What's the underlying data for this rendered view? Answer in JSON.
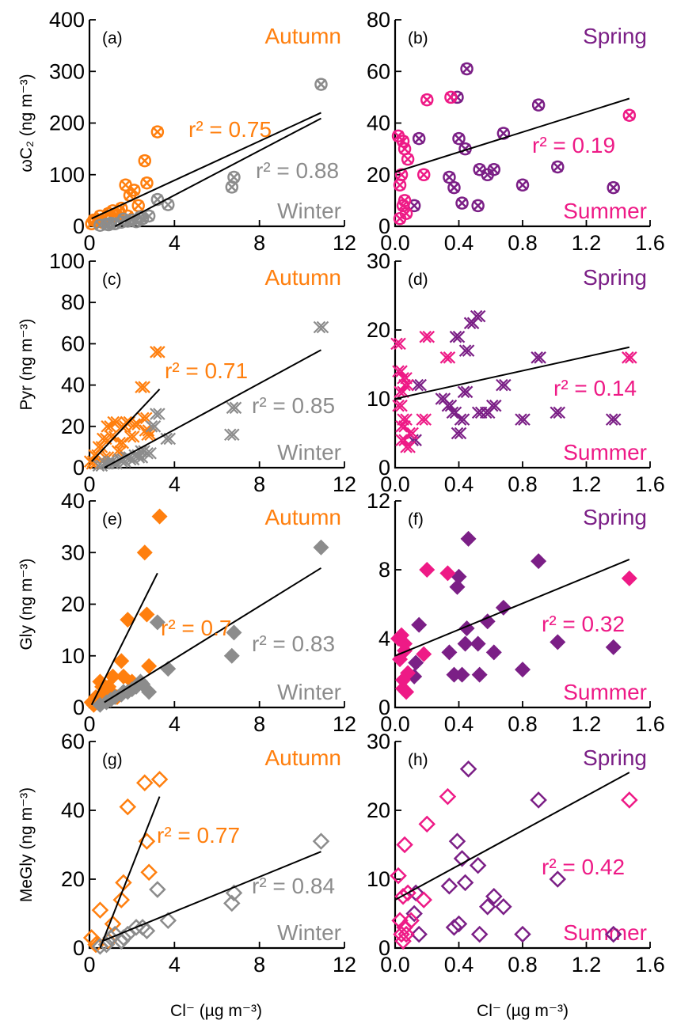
{
  "colors": {
    "autumn": "#FF7F0E",
    "winter": "#8C8C8C",
    "spring": "#7B1F86",
    "summer": "#EE1A86",
    "fit": "#000000"
  },
  "xlabel": "Cl⁻ (µg m⁻³)",
  "chart_data": [
    {
      "panel": "(a)",
      "type": "scatter",
      "marker": "circle-x",
      "ylabel": "ωC₂ (ng m⁻³)",
      "xlim": [
        0,
        12
      ],
      "ylim": [
        0,
        400
      ],
      "xticks": [
        0,
        4,
        8,
        12
      ],
      "yticks": [
        0,
        100,
        200,
        300,
        400
      ],
      "labels": {
        "top": "Autumn",
        "bottom": "Winter"
      },
      "series": [
        {
          "name": "Autumn",
          "color": "autumn",
          "r2": "r² = 0.75",
          "x": [
            0.1,
            0.3,
            0.5,
            0.7,
            0.9,
            1.1,
            1.3,
            1.5,
            1.7,
            1.9,
            2.1,
            2.3,
            2.6,
            2.7,
            3.2,
            1.8,
            0.2,
            0.6,
            1.0,
            1.4
          ],
          "y": [
            5,
            10,
            20,
            15,
            25,
            30,
            20,
            35,
            80,
            60,
            70,
            40,
            127,
            84,
            183,
            20,
            12,
            8,
            18,
            28
          ],
          "fit": [
            [
              0.1,
              15
            ],
            [
              10.9,
              220
            ]
          ]
        },
        {
          "name": "Winter",
          "color": "winter",
          "r2": "r² = 0.88",
          "x": [
            0.5,
            0.8,
            1.0,
            1.2,
            1.5,
            1.8,
            2.0,
            2.2,
            2.5,
            2.8,
            3.2,
            3.7,
            6.7,
            6.8,
            10.9,
            1.6,
            2.4,
            0.9
          ],
          "y": [
            2,
            4,
            6,
            5,
            8,
            10,
            12,
            9,
            15,
            20,
            52,
            42,
            76,
            95,
            275,
            14,
            18,
            3
          ],
          "fit": [
            [
              1.2,
              0
            ],
            [
              10.9,
              209
            ]
          ]
        }
      ]
    },
    {
      "panel": "(b)",
      "type": "scatter",
      "marker": "circle-x",
      "xlim": [
        0,
        1.6
      ],
      "ylim": [
        0,
        80
      ],
      "xticks": [
        0,
        0.4,
        0.8,
        1.2,
        1.6
      ],
      "yticks": [
        0,
        20,
        40,
        60,
        80
      ],
      "labels": {
        "top": "Spring",
        "bottom": "Summer"
      },
      "series": [
        {
          "name": "Spring",
          "color": "spring",
          "x": [
            0.12,
            0.15,
            0.34,
            0.37,
            0.39,
            0.42,
            0.44,
            0.45,
            0.52,
            0.53,
            0.58,
            0.62,
            0.68,
            0.8,
            0.9,
            1.02,
            1.37,
            0.4
          ],
          "y": [
            8,
            34,
            19,
            15,
            50,
            9,
            30,
            61,
            8,
            22,
            20,
            22,
            36,
            16,
            47,
            23,
            15,
            34
          ],
          "fit": [
            [
              0,
              21
            ],
            [
              1.47,
              49.5
            ]
          ]
        },
        {
          "name": "Summer",
          "color": "summer",
          "r2": "r² = 0.19",
          "x": [
            0.02,
            0.03,
            0.05,
            0.06,
            0.07,
            0.08,
            0.04,
            0.18,
            0.2,
            0.35,
            1.47,
            0.05,
            0.06,
            0.03
          ],
          "y": [
            35,
            16,
            33,
            30,
            5,
            26,
            20,
            20,
            49,
            50,
            43,
            8,
            10,
            3
          ],
          "fit": null
        }
      ]
    },
    {
      "panel": "(c)",
      "type": "scatter",
      "marker": "double-x",
      "ylabel": "Pyr (ng m⁻³)",
      "xlim": [
        0,
        12
      ],
      "ylim": [
        0,
        100
      ],
      "xticks": [
        0,
        4,
        8,
        12
      ],
      "yticks": [
        0,
        20,
        40,
        60,
        80,
        100
      ],
      "labels": {
        "top": "Autumn",
        "bottom": "Winter"
      },
      "series": [
        {
          "name": "Autumn",
          "color": "autumn",
          "r2": "r² = 0.71",
          "x": [
            0.1,
            0.3,
            0.5,
            0.7,
            0.9,
            1.1,
            1.2,
            1.4,
            1.6,
            1.8,
            2.0,
            2.2,
            2.5,
            2.6,
            2.7,
            3.2,
            0.2,
            0.8,
            1.5,
            2.8
          ],
          "y": [
            3,
            6,
            10,
            14,
            20,
            15,
            22,
            8,
            20,
            22,
            15,
            21,
            39,
            24,
            18,
            56,
            2,
            5,
            12,
            16
          ],
          "fit": [
            [
              0.1,
              3
            ],
            [
              3.3,
              38
            ]
          ]
        },
        {
          "name": "Winter",
          "color": "winter",
          "r2": "r² = 0.85",
          "x": [
            0.5,
            0.8,
            1.0,
            1.2,
            1.5,
            1.8,
            2.0,
            2.2,
            2.5,
            2.8,
            3.0,
            3.2,
            3.7,
            6.7,
            6.8,
            10.9,
            1.6,
            2.4
          ],
          "y": [
            1,
            2,
            3,
            2,
            4,
            5,
            4,
            6,
            8,
            7,
            20,
            26,
            14,
            16,
            29,
            68,
            3,
            5
          ],
          "fit": [
            [
              0.7,
              0
            ],
            [
              10.9,
              57
            ]
          ]
        }
      ]
    },
    {
      "panel": "(d)",
      "type": "scatter",
      "marker": "double-x",
      "xlim": [
        0,
        1.6
      ],
      "ylim": [
        0,
        30
      ],
      "xticks": [
        0,
        0.4,
        0.8,
        1.2,
        1.6
      ],
      "yticks": [
        0,
        10,
        20,
        30
      ],
      "labels": {
        "top": "Spring",
        "bottom": "Summer"
      },
      "series": [
        {
          "name": "Spring",
          "color": "spring",
          "x": [
            0.12,
            0.15,
            0.34,
            0.37,
            0.39,
            0.4,
            0.42,
            0.44,
            0.45,
            0.48,
            0.52,
            0.53,
            0.58,
            0.62,
            0.68,
            0.8,
            0.9,
            1.02,
            1.37,
            0.3
          ],
          "y": [
            4,
            12,
            9,
            8,
            19,
            5,
            7,
            11,
            17,
            21,
            22,
            8,
            8,
            9,
            12,
            7,
            16,
            8,
            7,
            10
          ],
          "fit": [
            [
              0,
              10
            ],
            [
              1.47,
              17.5
            ]
          ]
        },
        {
          "name": "Summer",
          "color": "summer",
          "r2": "r² = 0.14",
          "x": [
            0.02,
            0.03,
            0.04,
            0.05,
            0.06,
            0.07,
            0.08,
            0.1,
            0.18,
            0.2,
            0.33,
            1.47,
            0.05,
            0.03,
            0.06
          ],
          "y": [
            18,
            14,
            11,
            6,
            7,
            12,
            3,
            5,
            7,
            19,
            16,
            16,
            4,
            9,
            13
          ],
          "fit": null
        }
      ]
    },
    {
      "panel": "(e)",
      "type": "scatter",
      "marker": "diamond-filled",
      "ylabel": "Gly (ng m⁻³)",
      "xlim": [
        0,
        12
      ],
      "ylim": [
        0,
        40
      ],
      "xticks": [
        0,
        4,
        8,
        12
      ],
      "yticks": [
        0,
        10,
        20,
        30,
        40
      ],
      "labels": {
        "top": "Autumn",
        "bottom": "Winter"
      },
      "series": [
        {
          "name": "Autumn",
          "color": "autumn",
          "r2": "r² = 0.7",
          "x": [
            0.1,
            0.3,
            0.5,
            0.7,
            0.9,
            1.1,
            1.3,
            1.5,
            1.8,
            2.6,
            2.7,
            2.8,
            3.3,
            0.2,
            0.6,
            1.0,
            1.6,
            2.0
          ],
          "y": [
            1,
            2,
            5,
            3,
            4,
            6,
            2,
            9,
            17,
            30,
            18,
            8,
            37,
            0.5,
            4,
            3,
            6,
            5
          ],
          "fit": [
            [
              0.1,
              0.5
            ],
            [
              3.2,
              26
            ]
          ]
        },
        {
          "name": "Winter",
          "color": "winter",
          "r2": "r² = 0.83",
          "x": [
            0.5,
            0.8,
            1.0,
            1.2,
            1.5,
            1.8,
            2.0,
            2.2,
            2.5,
            2.8,
            3.2,
            3.7,
            6.7,
            6.8,
            10.9,
            1.6,
            2.4
          ],
          "y": [
            0.5,
            1,
            1.5,
            2,
            2.5,
            3,
            3.5,
            4,
            4.5,
            3,
            16.5,
            7.5,
            10,
            14.5,
            31,
            3,
            5
          ],
          "fit": [
            [
              0.7,
              1
            ],
            [
              10.9,
              27
            ]
          ]
        }
      ]
    },
    {
      "panel": "(f)",
      "type": "scatter",
      "marker": "diamond-filled",
      "xlim": [
        0,
        1.6
      ],
      "ylim": [
        0,
        12
      ],
      "xticks": [
        0,
        0.4,
        0.8,
        1.2,
        1.6
      ],
      "yticks": [
        0,
        4,
        8,
        12
      ],
      "labels": {
        "top": "Spring",
        "bottom": "Summer"
      },
      "series": [
        {
          "name": "Spring",
          "color": "spring",
          "x": [
            0.12,
            0.13,
            0.15,
            0.34,
            0.37,
            0.39,
            0.4,
            0.42,
            0.44,
            0.45,
            0.46,
            0.52,
            0.53,
            0.58,
            0.62,
            0.68,
            0.8,
            0.9,
            1.02,
            1.37
          ],
          "y": [
            1.8,
            2.6,
            4.8,
            3.2,
            1.9,
            7.0,
            7.6,
            1.9,
            3.7,
            4.6,
            9.8,
            3.7,
            1.9,
            5.0,
            3.2,
            5.8,
            2.2,
            8.5,
            3.8,
            3.5
          ],
          "fit": [
            [
              0,
              3
            ],
            [
              1.47,
              8.6
            ]
          ]
        },
        {
          "name": "Summer",
          "color": "summer",
          "r2": "r² = 0.32",
          "x": [
            0.02,
            0.03,
            0.04,
            0.05,
            0.06,
            0.07,
            0.08,
            0.18,
            0.2,
            0.33,
            1.47,
            0.05,
            0.06
          ],
          "y": [
            4.0,
            2.8,
            4.2,
            1.1,
            3.3,
            0.9,
            2.0,
            3.1,
            8.0,
            7.8,
            7.5,
            1.6,
            3.7
          ],
          "fit": null
        }
      ]
    },
    {
      "panel": "(g)",
      "type": "scatter",
      "marker": "diamond-open",
      "ylabel": "MeGly (ng m⁻³)",
      "xlim": [
        0,
        12
      ],
      "ylim": [
        0,
        60
      ],
      "xticks": [
        0,
        4,
        8,
        12
      ],
      "yticks": [
        0,
        20,
        40,
        60
      ],
      "labels": {
        "top": "Autumn",
        "bottom": "Winter"
      },
      "series": [
        {
          "name": "Autumn",
          "color": "autumn",
          "r2": "r² = 0.77",
          "x": [
            0.1,
            0.5,
            0.9,
            1.1,
            1.5,
            1.6,
            1.8,
            2.6,
            2.7,
            2.8,
            3.3,
            0.3
          ],
          "y": [
            3,
            11,
            2,
            7,
            14,
            19,
            41,
            48,
            31,
            22,
            49,
            1
          ],
          "fit": [
            [
              0.5,
              0
            ],
            [
              3.3,
              44
            ]
          ]
        },
        {
          "name": "Winter",
          "color": "winter",
          "r2": "r² = 0.84",
          "x": [
            0.5,
            0.8,
            1.0,
            1.2,
            1.5,
            1.8,
            2.2,
            2.7,
            3.2,
            3.7,
            6.7,
            6.8,
            10.9,
            2.5,
            1.6
          ],
          "y": [
            0.5,
            1,
            3,
            4,
            2,
            4,
            6,
            5,
            17,
            8,
            13,
            16,
            31,
            6,
            3
          ],
          "fit": [
            [
              0.6,
              2
            ],
            [
              10.9,
              28
            ]
          ]
        }
      ]
    },
    {
      "panel": "(h)",
      "type": "scatter",
      "marker": "diamond-open",
      "xlim": [
        0,
        1.6
      ],
      "ylim": [
        0,
        30
      ],
      "xticks": [
        0,
        0.4,
        0.8,
        1.2,
        1.6
      ],
      "yticks": [
        0,
        10,
        20,
        30
      ],
      "labels": {
        "top": "Spring",
        "bottom": "Summer"
      },
      "series": [
        {
          "name": "Spring",
          "color": "spring",
          "x": [
            0.12,
            0.13,
            0.15,
            0.34,
            0.37,
            0.39,
            0.4,
            0.42,
            0.44,
            0.46,
            0.52,
            0.53,
            0.58,
            0.62,
            0.68,
            0.8,
            0.9,
            1.02,
            1.37
          ],
          "y": [
            5,
            8,
            2,
            9,
            3,
            15.5,
            3.5,
            13,
            9.5,
            26,
            12,
            2,
            6,
            7.5,
            6,
            2,
            21.5,
            10,
            2
          ],
          "fit": [
            [
              0,
              7
            ],
            [
              1.47,
              25.5
            ]
          ]
        },
        {
          "name": "Summer",
          "color": "summer",
          "r2": "r² = 0.42",
          "x": [
            0.02,
            0.03,
            0.04,
            0.05,
            0.06,
            0.07,
            0.08,
            0.1,
            0.18,
            0.2,
            0.33,
            1.47,
            0.05,
            0.06
          ],
          "y": [
            10.5,
            4,
            2,
            7.5,
            3,
            2,
            8,
            4,
            7,
            18,
            22,
            21.5,
            1,
            15
          ],
          "fit": null
        }
      ]
    }
  ]
}
